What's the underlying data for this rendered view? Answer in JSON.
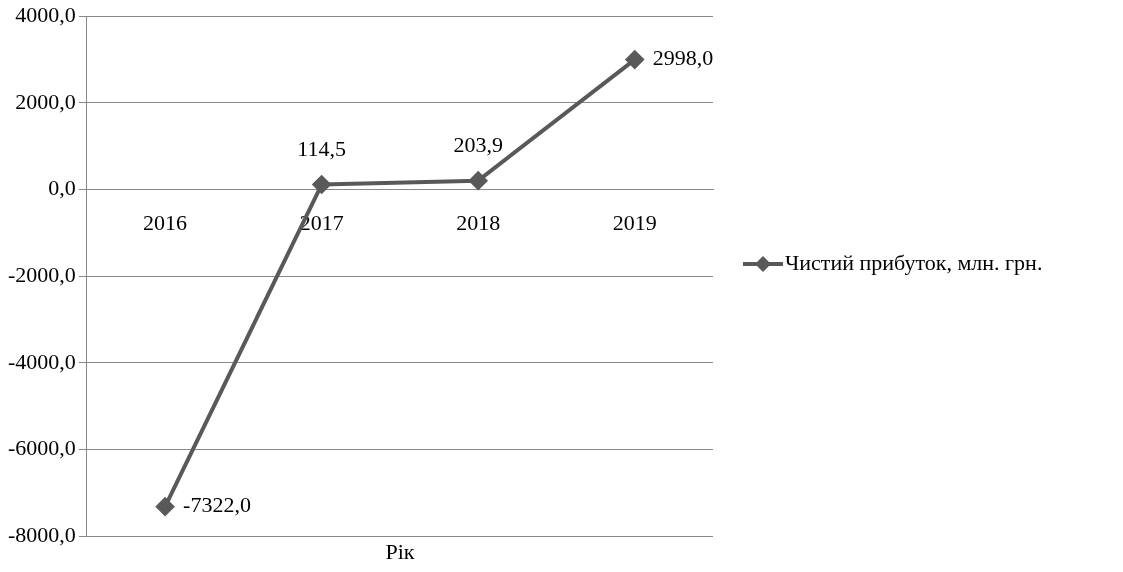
{
  "chart_data": {
    "type": "line",
    "xlabel": "Рік",
    "categories": [
      "2016",
      "2017",
      "2018",
      "2019"
    ],
    "series": [
      {
        "name": "Чистий прибуток, млн. грн.",
        "color": "#595959",
        "values": [
          -7322.0,
          114.5,
          203.9,
          2998.0
        ],
        "value_labels": [
          "-7322,0",
          "114,5",
          "203,9",
          "2998,0"
        ]
      }
    ],
    "ylim": [
      -8000,
      4000
    ],
    "yticks": [
      {
        "value": -8000,
        "label": "-8000,0"
      },
      {
        "value": -6000,
        "label": "-6000,0"
      },
      {
        "value": -4000,
        "label": "-4000,0"
      },
      {
        "value": -2000,
        "label": "-2000,0"
      },
      {
        "value": 0,
        "label": "0,0"
      },
      {
        "value": 2000,
        "label": "2000,0"
      },
      {
        "value": 4000,
        "label": "4000,0"
      }
    ],
    "grid": "y",
    "legend": "right",
    "marker": "diamond",
    "line_style": "solid"
  }
}
